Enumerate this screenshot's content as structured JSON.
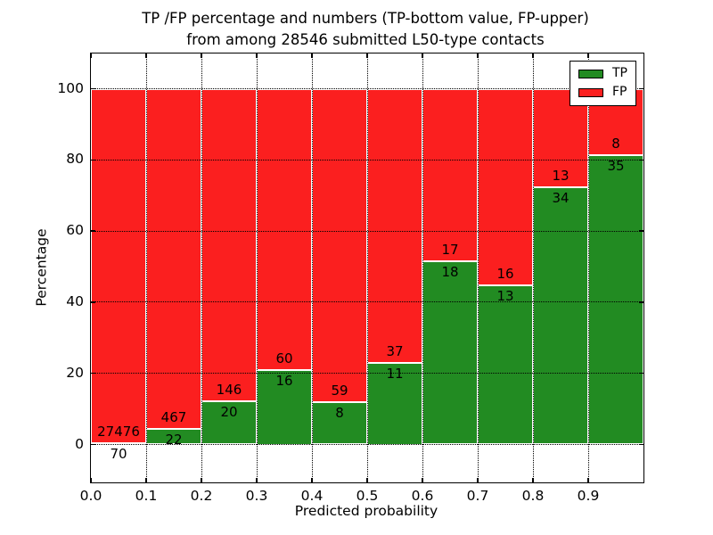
{
  "chart_data": {
    "type": "bar",
    "stacked": true,
    "title_lines": [
      "TP /FP percentage and numbers (TP-bottom value, FP-upper)",
      "from among 28546 submitted L50-type contacts"
    ],
    "xlabel": "Predicted probability",
    "ylabel": "Percentage",
    "x_tick_labels": [
      "0.0",
      "0.1",
      "0.2",
      "0.3",
      "0.4",
      "0.5",
      "0.6",
      "0.7",
      "0.8",
      "0.9"
    ],
    "y_tick_labels": [
      "0",
      "20",
      "40",
      "60",
      "80",
      "100"
    ],
    "y_tick_values": [
      0,
      20,
      40,
      60,
      80,
      100
    ],
    "xlim": [
      0.0,
      1.0
    ],
    "ylim": [
      -10.5,
      110.5
    ],
    "bin_width": 0.1,
    "grid": true,
    "bars_sum_to": 100,
    "categories": [
      "0.0-0.1",
      "0.1-0.2",
      "0.2-0.3",
      "0.3-0.4",
      "0.4-0.5",
      "0.5-0.6",
      "0.6-0.7",
      "0.7-0.8",
      "0.8-0.9",
      "0.9-1.0"
    ],
    "series": [
      {
        "name": "TP",
        "stack_position": "bottom",
        "color": "#228b22",
        "counts": [
          70,
          22,
          20,
          16,
          8,
          11,
          18,
          13,
          34,
          35
        ]
      },
      {
        "name": "FP",
        "stack_position": "top",
        "color": "#fb1f1f",
        "counts": [
          27476,
          467,
          146,
          60,
          59,
          37,
          17,
          16,
          13,
          8
        ]
      }
    ],
    "legend": {
      "position": "upper-right",
      "items": [
        {
          "label": "TP",
          "color": "#228b22"
        },
        {
          "label": "FP",
          "color": "#fb1f1f"
        }
      ]
    }
  }
}
